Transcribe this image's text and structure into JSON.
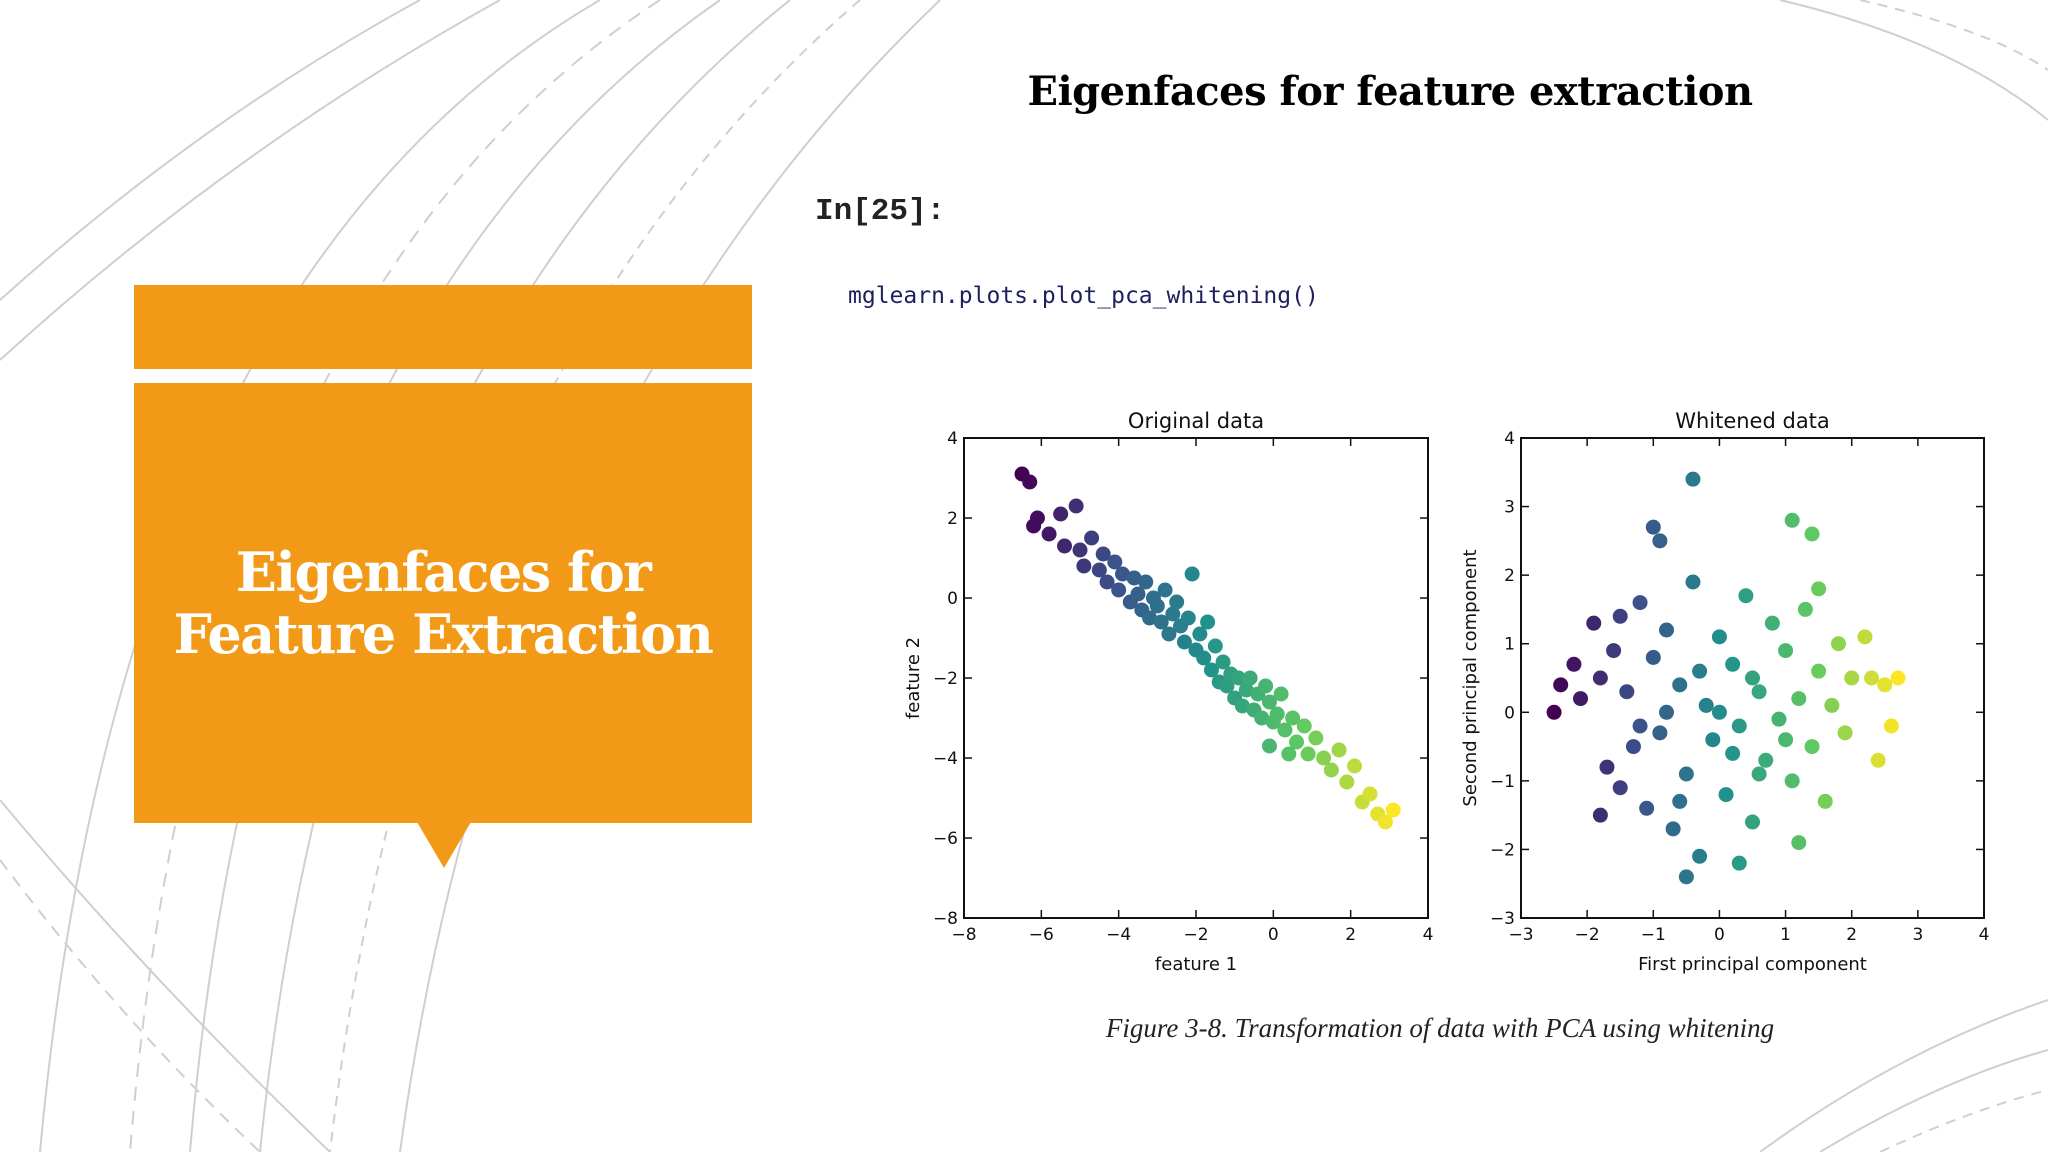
{
  "slide": {
    "title": "Eigenfaces for feature extraction",
    "side_title": "Eigenfaces for\nFeature Extraction",
    "accent_color": "#f29a17"
  },
  "code": {
    "prompt": "In[25]:",
    "line": "mglearn.plots.plot_pca_whitening()"
  },
  "figure": {
    "caption": "Figure 3-8. Transformation of data with PCA using whitening"
  },
  "chart_data": [
    {
      "type": "scatter",
      "title": "Original data",
      "xlabel": "feature 1",
      "ylabel": "feature 2",
      "xlim": [
        -8,
        4
      ],
      "ylim": [
        -8,
        4
      ],
      "xticks": [
        -8,
        -6,
        -4,
        -2,
        0,
        2,
        4
      ],
      "yticks": [
        -8,
        -6,
        -4,
        -2,
        0,
        2,
        4
      ],
      "colormap": "viridis",
      "grid": false,
      "points": [
        [
          -6.5,
          3.1
        ],
        [
          -6.3,
          2.9
        ],
        [
          -6.1,
          2.0
        ],
        [
          -6.2,
          1.8
        ],
        [
          -5.8,
          1.6
        ],
        [
          -5.5,
          2.1
        ],
        [
          -5.4,
          1.3
        ],
        [
          -5.1,
          2.3
        ],
        [
          -5.0,
          1.2
        ],
        [
          -4.9,
          0.8
        ],
        [
          -4.7,
          1.5
        ],
        [
          -4.5,
          0.7
        ],
        [
          -4.4,
          1.1
        ],
        [
          -4.3,
          0.4
        ],
        [
          -4.1,
          0.9
        ],
        [
          -4.0,
          0.2
        ],
        [
          -3.9,
          0.6
        ],
        [
          -3.7,
          -0.1
        ],
        [
          -3.6,
          0.5
        ],
        [
          -3.5,
          0.1
        ],
        [
          -3.4,
          -0.3
        ],
        [
          -3.3,
          0.4
        ],
        [
          -3.2,
          -0.5
        ],
        [
          -3.1,
          0.0
        ],
        [
          -3.0,
          -0.2
        ],
        [
          -2.9,
          -0.6
        ],
        [
          -2.8,
          0.2
        ],
        [
          -2.7,
          -0.9
        ],
        [
          -2.6,
          -0.4
        ],
        [
          -2.5,
          -0.1
        ],
        [
          -2.4,
          -0.7
        ],
        [
          -2.3,
          -1.1
        ],
        [
          -2.2,
          -0.5
        ],
        [
          -2.1,
          0.6
        ],
        [
          -2.0,
          -1.3
        ],
        [
          -1.9,
          -0.9
        ],
        [
          -1.8,
          -1.5
        ],
        [
          -1.7,
          -0.6
        ],
        [
          -1.6,
          -1.8
        ],
        [
          -1.5,
          -1.2
        ],
        [
          -1.4,
          -2.1
        ],
        [
          -1.3,
          -1.6
        ],
        [
          -1.2,
          -2.2
        ],
        [
          -1.1,
          -1.9
        ],
        [
          -1.0,
          -2.5
        ],
        [
          -0.9,
          -2.0
        ],
        [
          -0.8,
          -2.7
        ],
        [
          -0.7,
          -2.3
        ],
        [
          -0.6,
          -2.0
        ],
        [
          -0.5,
          -2.8
        ],
        [
          -0.4,
          -2.4
        ],
        [
          -0.3,
          -3.0
        ],
        [
          -0.2,
          -2.2
        ],
        [
          -0.1,
          -2.6
        ],
        [
          0.0,
          -3.1
        ],
        [
          0.1,
          -2.9
        ],
        [
          0.2,
          -2.4
        ],
        [
          0.3,
          -3.3
        ],
        [
          0.5,
          -3.0
        ],
        [
          0.6,
          -3.6
        ],
        [
          0.8,
          -3.2
        ],
        [
          0.9,
          -3.9
        ],
        [
          1.1,
          -3.5
        ],
        [
          1.3,
          -4.0
        ],
        [
          1.5,
          -4.3
        ],
        [
          1.7,
          -3.8
        ],
        [
          1.9,
          -4.6
        ],
        [
          2.1,
          -4.2
        ],
        [
          2.3,
          -5.1
        ],
        [
          2.5,
          -4.9
        ],
        [
          2.7,
          -5.4
        ],
        [
          2.9,
          -5.6
        ],
        [
          3.1,
          -5.3
        ],
        [
          -0.1,
          -3.7
        ],
        [
          0.4,
          -3.9
        ]
      ]
    },
    {
      "type": "scatter",
      "title": "Whitened data",
      "xlabel": "First principal component",
      "ylabel": "Second principal component",
      "xlim": [
        -3,
        4
      ],
      "ylim": [
        -3,
        4
      ],
      "xticks": [
        -3,
        -2,
        -1,
        0,
        1,
        2,
        3,
        4
      ],
      "yticks": [
        -3,
        -2,
        -1,
        0,
        1,
        2,
        3,
        4
      ],
      "colormap": "viridis",
      "grid": false,
      "points": [
        [
          -0.4,
          3.4
        ],
        [
          -0.9,
          2.5
        ],
        [
          -1.0,
          2.7
        ],
        [
          1.1,
          2.8
        ],
        [
          1.4,
          2.6
        ],
        [
          -2.4,
          0.4
        ],
        [
          -2.5,
          0.0
        ],
        [
          -2.2,
          0.7
        ],
        [
          -2.1,
          0.2
        ],
        [
          -1.9,
          1.3
        ],
        [
          -1.8,
          0.5
        ],
        [
          -1.7,
          -0.8
        ],
        [
          -1.6,
          0.9
        ],
        [
          -1.5,
          -1.1
        ],
        [
          -1.4,
          0.3
        ],
        [
          -1.3,
          -0.5
        ],
        [
          -1.2,
          1.6
        ],
        [
          -1.1,
          -1.4
        ],
        [
          -1.0,
          0.8
        ],
        [
          -0.9,
          -0.3
        ],
        [
          -0.8,
          1.2
        ],
        [
          -0.7,
          -1.7
        ],
        [
          -0.6,
          0.4
        ],
        [
          -0.5,
          -0.9
        ],
        [
          -0.4,
          1.9
        ],
        [
          -0.3,
          -2.1
        ],
        [
          -0.2,
          0.1
        ],
        [
          -0.1,
          -0.4
        ],
        [
          0.0,
          1.1
        ],
        [
          0.1,
          -1.2
        ],
        [
          0.2,
          0.7
        ],
        [
          0.3,
          -0.2
        ],
        [
          0.4,
          1.7
        ],
        [
          0.5,
          -1.6
        ],
        [
          0.6,
          0.3
        ],
        [
          0.7,
          -0.7
        ],
        [
          0.8,
          1.3
        ],
        [
          0.9,
          -0.1
        ],
        [
          1.0,
          0.9
        ],
        [
          1.1,
          -1.0
        ],
        [
          1.2,
          0.2
        ],
        [
          1.3,
          1.5
        ],
        [
          1.4,
          -0.5
        ],
        [
          1.5,
          0.6
        ],
        [
          1.6,
          -1.3
        ],
        [
          1.7,
          0.1
        ],
        [
          1.8,
          1.0
        ],
        [
          1.9,
          -0.3
        ],
        [
          2.0,
          0.5
        ],
        [
          2.2,
          1.1
        ],
        [
          2.3,
          0.5
        ],
        [
          2.4,
          -0.7
        ],
        [
          2.5,
          0.4
        ],
        [
          2.6,
          -0.2
        ],
        [
          2.7,
          0.5
        ],
        [
          1.2,
          -1.9
        ],
        [
          -0.5,
          -2.4
        ],
        [
          0.3,
          -2.2
        ],
        [
          -1.8,
          -1.5
        ],
        [
          -0.8,
          0.0
        ],
        [
          0.0,
          0.0
        ],
        [
          0.5,
          0.5
        ],
        [
          -0.3,
          0.6
        ],
        [
          1.0,
          -0.4
        ],
        [
          -1.2,
          -0.2
        ],
        [
          0.6,
          -0.9
        ],
        [
          -0.6,
          -1.3
        ],
        [
          1.5,
          1.8
        ],
        [
          -1.5,
          1.4
        ],
        [
          0.2,
          -0.6
        ]
      ]
    }
  ]
}
